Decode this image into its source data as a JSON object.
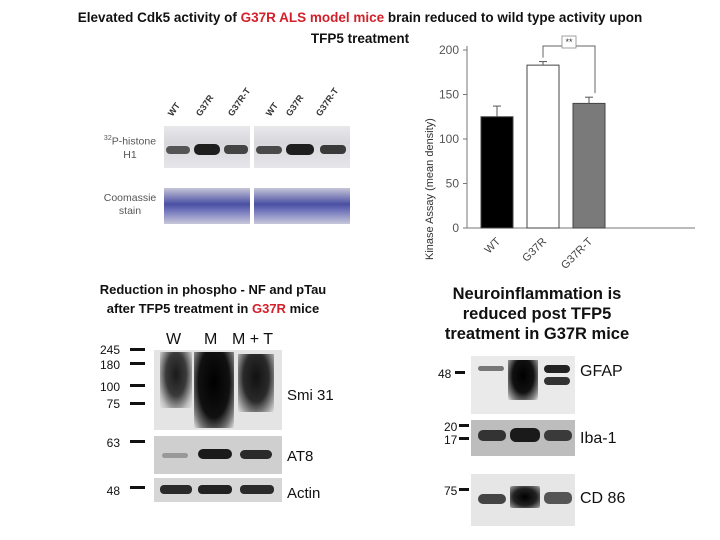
{
  "title": {
    "part1": "Elevated Cdk5 activity of ",
    "part2": "G37R ALS model mice",
    "part3": " brain reduced to wild type activity upon",
    "line2": "TFP5 treatment"
  },
  "kinase_blot": {
    "lanes": [
      "WT",
      "G37R",
      "G37R-T",
      "WT",
      "G37R",
      "G37R-T"
    ],
    "label_histone_sup": "32",
    "label_histone": "P-histone",
    "label_histone2": "H1",
    "label_coomassie": "Coomassie",
    "label_coomassie2": "stain"
  },
  "chart_data": {
    "type": "bar",
    "categories": [
      "WT",
      "G37R",
      "G37R-T"
    ],
    "values": [
      125,
      183,
      140
    ],
    "errors": [
      12,
      4,
      7
    ],
    "colors": [
      "#000000",
      "#ffffff",
      "#7a7a7a"
    ],
    "yticks": [
      0,
      50,
      100,
      150,
      200
    ],
    "ylim": [
      0,
      200
    ],
    "ylabel": "Kinase Assay (mean density)",
    "significance": "**"
  },
  "panel_tau": {
    "subtitle_line1": "Reduction in phospho - NF and pTau",
    "subtitle_pre": "after TFP5 treatment in ",
    "subtitle_red": "G37R",
    "subtitle_post": " mice",
    "lanes": [
      "W",
      "M",
      "M + T"
    ],
    "mw": [
      "245",
      "180",
      "100",
      "75",
      "63",
      "48"
    ],
    "labels": {
      "smi": "Smi 31",
      "at8": "AT8",
      "actin": "Actin"
    }
  },
  "panel_neuro": {
    "heading": [
      "Neuroinflammation is",
      "reduced post TFP5",
      "treatment in G37R mice"
    ],
    "mw": [
      "48",
      "20",
      "17",
      "75"
    ],
    "labels": {
      "gfap": "GFAP",
      "iba": "Iba-1",
      "cd86": "CD 86"
    }
  }
}
